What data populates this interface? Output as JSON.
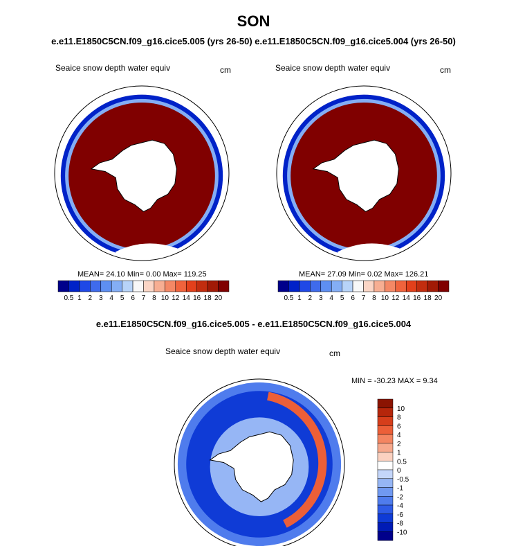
{
  "title": "SON",
  "case_line": "e.e11.E1850C5CN.f09_g16.cice5.005 (yrs 26-50) e.e11.E1850C5CN.f09_g16.cice5.004 (yrs 26-50)",
  "diff_title": "e.e11.E1850C5CN.f09_g16.cice5.005 - e.e11.E1850C5CN.f09_g16.cice5.004",
  "colors": {
    "land": "#ffffff",
    "outline": "#000000",
    "seq_colorbar": [
      "#00008b",
      "#0022c8",
      "#1f48e6",
      "#3f6bec",
      "#5e8ff2",
      "#84aef5",
      "#b7d3f8",
      "#f8f8f8",
      "#fbd5c5",
      "#f7ae92",
      "#f48865",
      "#f0633c",
      "#e3401b",
      "#c22d0f",
      "#a11a06",
      "#800000"
    ],
    "div_colorbar": [
      "#00008b",
      "#001bb5",
      "#0f3bd6",
      "#2e5be6",
      "#4f7ced",
      "#7099f1",
      "#96b6f5",
      "#c4d6fa",
      "#ffffff",
      "#fbd1c0",
      "#f7a98d",
      "#f48561",
      "#ec5f38",
      "#d63e1b",
      "#b5260b",
      "#8b1402"
    ]
  },
  "chart_data": [
    {
      "type": "heatmap",
      "panel": "left",
      "title": "Seaice snow depth water equiv",
      "units": "cm",
      "stats_text": "MEAN=  24.10  Min=   0.00  Max= 119.25",
      "stats": {
        "mean": 24.1,
        "min": 0.0,
        "max": 119.25
      },
      "colorbar_labels": [
        "0.5",
        "1",
        "2",
        "3",
        "4",
        "5",
        "6",
        "7",
        "8",
        "10",
        "12",
        "14",
        "16",
        "18",
        "20"
      ]
    },
    {
      "type": "heatmap",
      "panel": "right",
      "title": "Seaice snow depth water equiv",
      "units": "cm",
      "stats_text": "MEAN=  27.09  Min=   0.02  Max= 126.21",
      "stats": {
        "mean": 27.09,
        "min": 0.02,
        "max": 126.21
      },
      "colorbar_labels": [
        "0.5",
        "1",
        "2",
        "3",
        "4",
        "5",
        "6",
        "7",
        "8",
        "10",
        "12",
        "14",
        "16",
        "18",
        "20"
      ]
    },
    {
      "type": "heatmap",
      "panel": "difference",
      "title": "Seaice snow depth water equiv",
      "units": "cm",
      "stats_text": "MIN = -30.23 MAX =   9.34",
      "stats": {
        "min": -30.23,
        "max": 9.34
      },
      "colorbar_labels": [
        "10",
        "8",
        "6",
        "4",
        "2",
        "1",
        "0.5",
        "0",
        "-0.5",
        "-1",
        "-2",
        "-4",
        "-6",
        "-8",
        "-10"
      ]
    }
  ]
}
